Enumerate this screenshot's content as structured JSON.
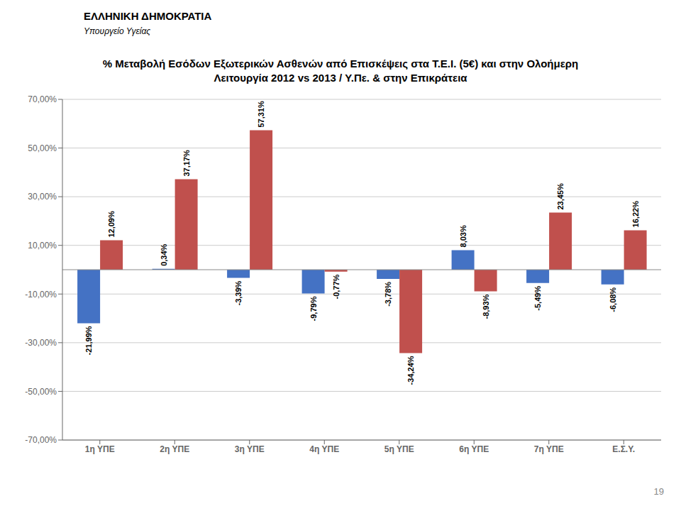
{
  "chart_data": {
    "type": "bar",
    "title": "% Μεταβολή Εσόδων Εξωτερικών Ασθενών από Επισκέψεις στα Τ.Ε.Ι. (5€) και στην Ολοήμερη",
    "subtitle": "Λειτουργία 2012 vs 2013 / Υ.Πε. & στην Επικράτεια",
    "annotations": [
      "ΕΛΛΗΝΙΚΗ ΔΗΜΟΚΡΑΤΙΑ",
      "Υπουργείο Υγείας",
      "19"
    ],
    "categories": [
      "1η ΥΠΕ",
      "2η ΥΠΕ",
      "3η ΥΠΕ",
      "4η ΥΠΕ",
      "5η ΥΠΕ",
      "6η ΥΠΕ",
      "7η ΥΠΕ",
      "Ε.Σ.Υ."
    ],
    "series": [
      {
        "color": "#4472C4",
        "values": [
          -21.99,
          0.34,
          -3.39,
          -9.79,
          -3.78,
          8.03,
          -5.49,
          -6.08
        ],
        "value_labels": [
          "-21,99%",
          "0,34%",
          "-3,39%",
          "-9,79%",
          "-3,78%",
          "8,03%",
          "-5,49%",
          "-6,08%"
        ]
      },
      {
        "color": "#C0504D",
        "values": [
          12.09,
          37.17,
          57.31,
          -0.77,
          -34.24,
          -8.93,
          23.45,
          16.22
        ],
        "value_labels": [
          "12,09%",
          "37,17%",
          "57,31%",
          "-0,77%",
          "-34,24%",
          "-8,93%",
          "23,45%",
          "16,22%"
        ]
      }
    ],
    "ylim": [
      -70,
      70
    ],
    "yticks": [
      {
        "value": -70,
        "label": "-70,00%"
      },
      {
        "value": -50,
        "label": "-50,00%"
      },
      {
        "value": -30,
        "label": "-30,00%"
      },
      {
        "value": -10,
        "label": "-10,00%"
      },
      {
        "value": 10,
        "label": "10,00%"
      },
      {
        "value": 30,
        "label": "30,00%"
      },
      {
        "value": 50,
        "label": "50,00%"
      },
      {
        "value": 70,
        "label": "70,00%"
      }
    ],
    "grid": true,
    "data_labels": true
  }
}
